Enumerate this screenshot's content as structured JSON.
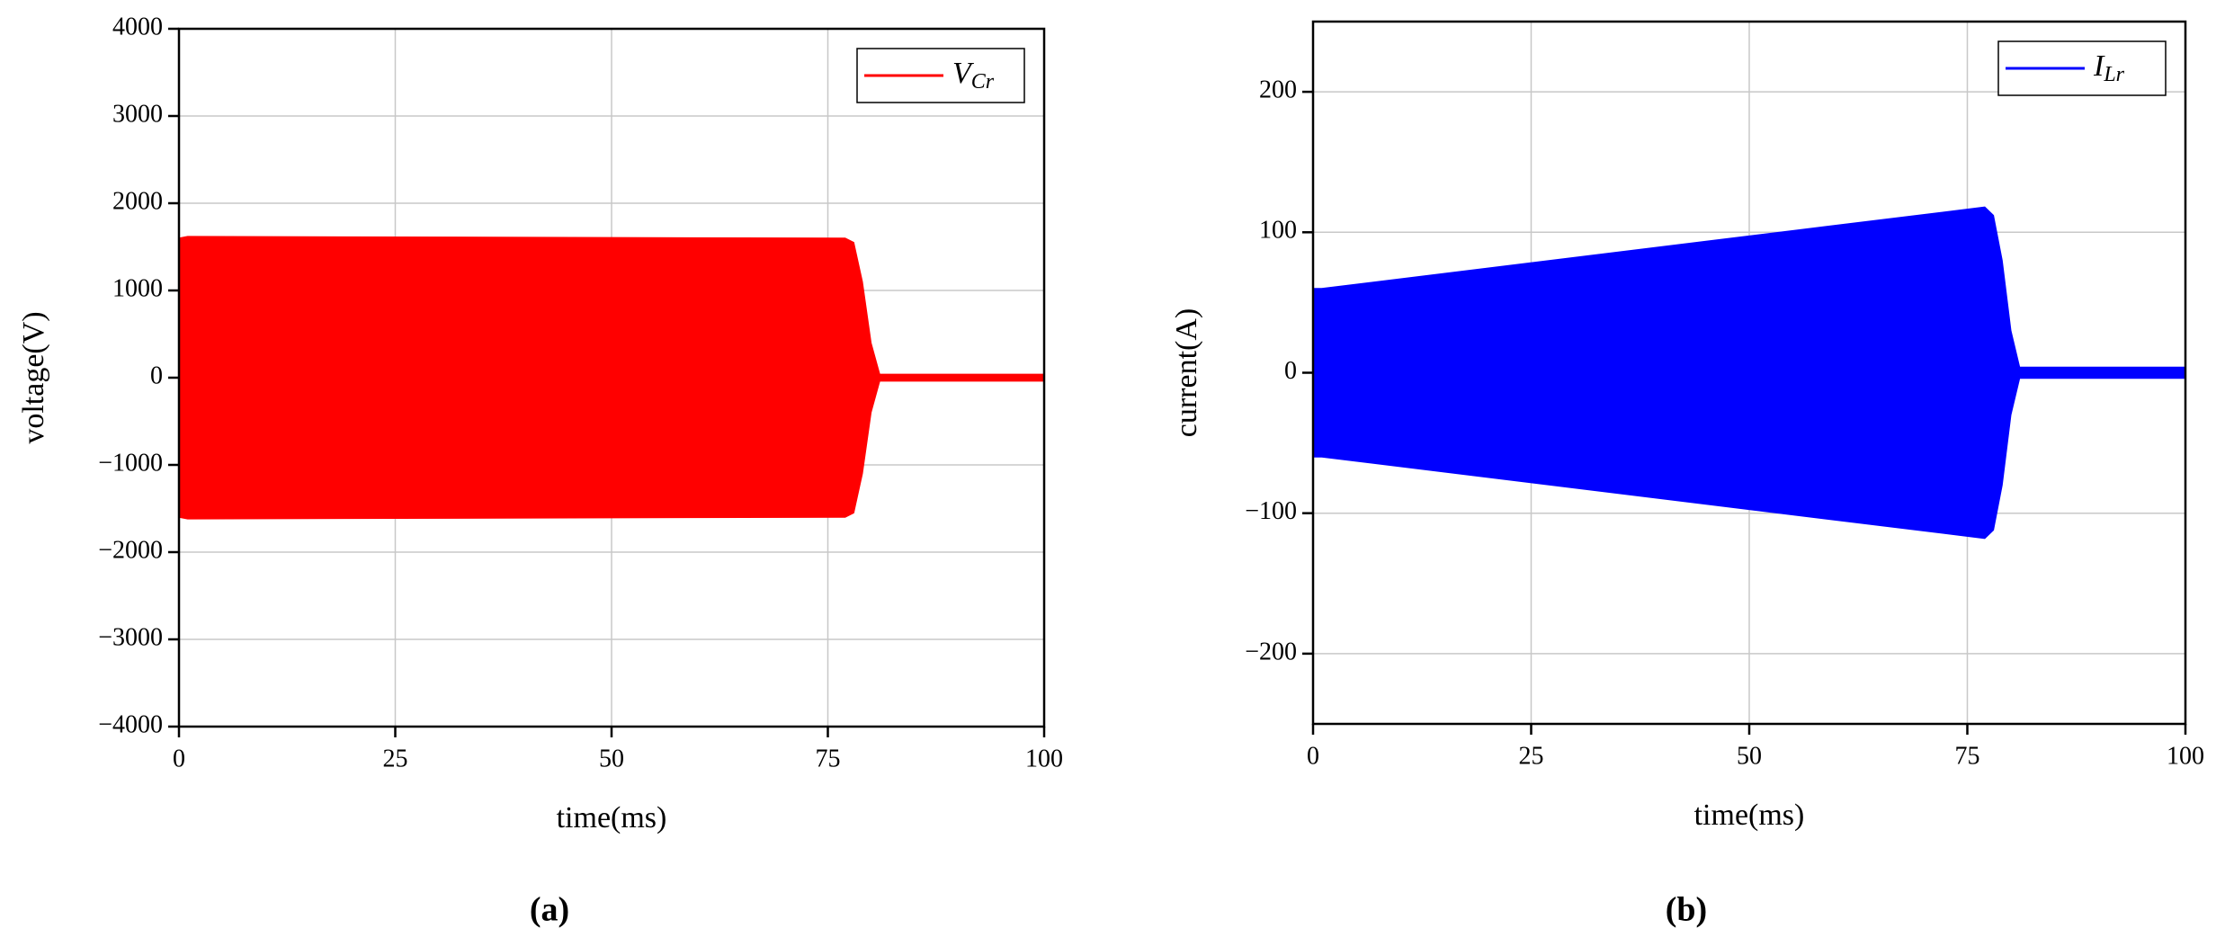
{
  "chart_data": [
    {
      "type": "envelope",
      "caption": "(a)",
      "x_label": "time(ms)",
      "y_label": "voltage(V)",
      "legend_label": {
        "text": "V",
        "subscript": "Cr"
      },
      "legend_position": "upper right",
      "x": [
        0,
        1,
        77,
        78,
        79,
        80,
        81,
        100
      ],
      "series": [
        {
          "color": "#ff0000",
          "values": [
            1600,
            1620,
            1600,
            1550,
            1100,
            400,
            40,
            40
          ],
          "lower": [
            -1600,
            -1620,
            -1600,
            -1550,
            -1100,
            -400,
            -40,
            -40
          ]
        }
      ],
      "xlim": [
        0,
        100
      ],
      "xticks": [
        0,
        25,
        50,
        75,
        100
      ],
      "ylim": [
        -4000,
        4000
      ],
      "yticks": [
        {
          "value": -4000,
          "label": "−4000"
        },
        {
          "value": -3000,
          "label": "−3000"
        },
        {
          "value": -2000,
          "label": "−2000"
        },
        {
          "value": -1000,
          "label": "−1000"
        },
        0,
        1000,
        2000,
        3000,
        4000
      ],
      "grid": true
    },
    {
      "type": "envelope",
      "caption": "(b)",
      "x_label": "time(ms)",
      "y_label": "current(A)",
      "legend_label": {
        "text": "I",
        "subscript": "Lr"
      },
      "legend_position": "upper right",
      "x": [
        0,
        1,
        77,
        78,
        79,
        80,
        81,
        100
      ],
      "series": [
        {
          "color": "#0000ff",
          "values": [
            60,
            60,
            118,
            112,
            80,
            30,
            4,
            4
          ],
          "lower": [
            -60,
            -60,
            -118,
            -112,
            -80,
            -30,
            -4,
            -4
          ]
        }
      ],
      "xlim": [
        0,
        100
      ],
      "xticks": [
        0,
        25,
        50,
        75,
        100
      ],
      "ylim": [
        -250,
        250
      ],
      "yticks": [
        {
          "value": -200,
          "label": "−200"
        },
        {
          "value": -100,
          "label": "−100"
        },
        0,
        100,
        200
      ],
      "grid": true
    }
  ]
}
